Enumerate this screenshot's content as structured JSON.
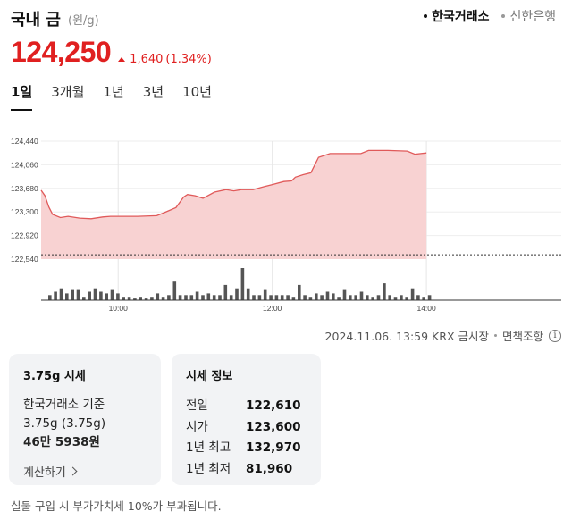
{
  "header": {
    "title": "국내 금",
    "unit": "(원/g)",
    "sources": [
      {
        "label": "한국거래소",
        "active": true
      },
      {
        "label": "신한은행",
        "active": false
      }
    ]
  },
  "price": {
    "current": "124,250",
    "change": "1,640",
    "change_pct": "(1.34%)",
    "direction": "up",
    "color": "#e02020"
  },
  "period_tabs": [
    {
      "label": "1일",
      "active": true
    },
    {
      "label": "3개월",
      "active": false
    },
    {
      "label": "1년",
      "active": false
    },
    {
      "label": "3년",
      "active": false
    },
    {
      "label": "10년",
      "active": false
    }
  ],
  "chart_data": {
    "type": "area",
    "y_ticks": [
      "124,440",
      "124,060",
      "123,680",
      "123,300",
      "122,920",
      "122,540"
    ],
    "ylim": [
      122540,
      124440
    ],
    "x_ticks": [
      "10:00",
      "12:00",
      "14:00"
    ],
    "baseline": 122610,
    "series": [
      {
        "x": [
          9.0,
          9.05,
          9.1,
          9.15,
          9.25,
          9.35,
          9.5,
          9.65,
          9.8,
          9.9,
          10.0,
          10.25,
          10.5,
          10.6,
          10.75,
          10.85,
          10.9,
          11.0,
          11.1,
          11.25,
          11.4,
          11.5,
          11.6,
          11.75,
          11.9,
          12.0,
          12.15,
          12.25,
          12.3,
          12.4,
          12.5,
          12.6,
          12.75,
          12.9,
          13.0,
          13.15,
          13.25,
          13.5,
          13.75,
          13.85,
          14.0
        ],
        "values": [
          123650,
          123560,
          123380,
          123260,
          123210,
          123230,
          123200,
          123190,
          123220,
          123230,
          123230,
          123230,
          123240,
          123290,
          123370,
          123540,
          123580,
          123560,
          123520,
          123620,
          123660,
          123640,
          123660,
          123660,
          123710,
          123740,
          123790,
          123800,
          123860,
          123900,
          123930,
          124180,
          124240,
          124240,
          124240,
          124240,
          124290,
          124290,
          124280,
          124230,
          124250
        ],
        "color": "#e05a5a",
        "fill": "#f8d2d2"
      }
    ],
    "volume": [
      3,
      5,
      7,
      4,
      6,
      6,
      2,
      5,
      7,
      5,
      4,
      6,
      4,
      2,
      2,
      1,
      2,
      1,
      2,
      4,
      2,
      3,
      11,
      3,
      3,
      3,
      5,
      3,
      4,
      3,
      3,
      9,
      3,
      7,
      19,
      7,
      3,
      3,
      6,
      3,
      3,
      3,
      3,
      2,
      9,
      3,
      2,
      4,
      3,
      5,
      4,
      2,
      6,
      3,
      3,
      5,
      3,
      2,
      3,
      10,
      3,
      2,
      3,
      2,
      7,
      3,
      2,
      3
    ]
  },
  "meta": {
    "timestamp": "2024.11.06. 13:59 KRX 금시장",
    "disclaimer": "면책조항",
    "info_icon": "info-icon"
  },
  "card1": {
    "title": "3.75g 시세",
    "line1": "한국거래소 기준",
    "line2": "3.75g (3.75g)",
    "line3": "46만 5938원",
    "calc_label": "계산하기"
  },
  "card2": {
    "title": "시세 정보",
    "rows": [
      {
        "k": "전일",
        "v": "122,610"
      },
      {
        "k": "시가",
        "v": "123,600"
      },
      {
        "k": "1년 최고",
        "v": "132,970"
      },
      {
        "k": "1년 최저",
        "v": "81,960"
      }
    ]
  },
  "footnote": "실물 구입 시 부가가치세 10%가 부과됩니다."
}
